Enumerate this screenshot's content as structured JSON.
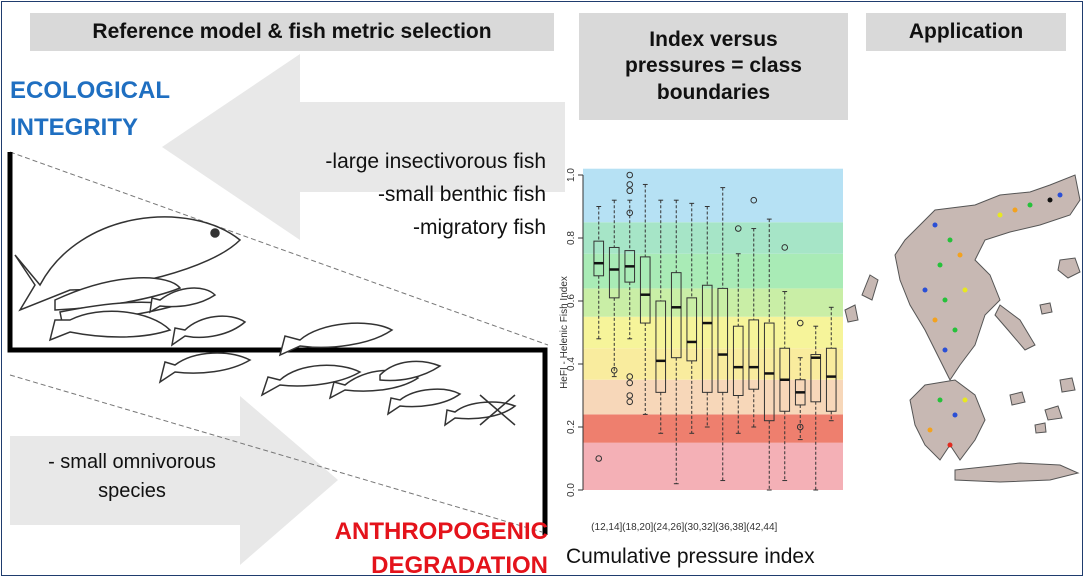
{
  "headers": {
    "h1": "Reference model & fish metric selection",
    "h2": "Index versus pressures = class boundaries",
    "h3": "Application"
  },
  "labels": {
    "ecological_integrity": [
      "ECOLOGICAL",
      "INTEGRITY"
    ],
    "anthropogenic_degradation": [
      "ANTHROPOGENIC",
      "DEGRADATION"
    ]
  },
  "metrics": [
    "-large insectivorous fish",
    "-small benthic fish",
    "-migratory fish"
  ],
  "omnivore_text": "- small omnivorous species",
  "chart_data": {
    "type": "boxplot",
    "ylabel": "HeFI - Helenic Fish Index",
    "xlabel": "Cumulative pressure index",
    "ylim": [
      0,
      1
    ],
    "yticks": [
      "0.0",
      "0.2",
      "0.4",
      "0.6",
      "0.8",
      "1.0"
    ],
    "xticks": [
      "(12,14]",
      "(18,20]",
      "(24,26]",
      "(30,32]",
      "(36,38]",
      "(42,44]"
    ],
    "class_bands": [
      {
        "from": 0.0,
        "to": 0.15,
        "color": "#f4b0b6"
      },
      {
        "from": 0.15,
        "to": 0.24,
        "color": "#ee7f6e"
      },
      {
        "from": 0.24,
        "to": 0.35,
        "color": "#f7d7b9"
      },
      {
        "from": 0.35,
        "to": 0.45,
        "color": "#f9ec9e"
      },
      {
        "from": 0.45,
        "to": 0.55,
        "color": "#f6f49a"
      },
      {
        "from": 0.55,
        "to": 0.64,
        "color": "#c9eea6"
      },
      {
        "from": 0.64,
        "to": 0.75,
        "color": "#a9ebb6"
      },
      {
        "from": 0.75,
        "to": 0.85,
        "color": "#a6e5c7"
      },
      {
        "from": 0.85,
        "to": 1.02,
        "color": "#b6e1f4"
      }
    ],
    "boxes": [
      {
        "med": 0.72,
        "q1": 0.68,
        "q3": 0.79,
        "lo": 0.48,
        "hi": 0.9,
        "out": [
          0.1
        ]
      },
      {
        "med": 0.7,
        "q1": 0.61,
        "q3": 0.77,
        "lo": 0.36,
        "hi": 0.92,
        "out": [
          0.38
        ]
      },
      {
        "med": 0.71,
        "q1": 0.66,
        "q3": 0.76,
        "lo": 0.48,
        "hi": 0.92,
        "out": [
          1.0,
          0.97,
          0.95,
          0.88,
          0.36,
          0.34,
          0.3,
          0.28
        ]
      },
      {
        "med": 0.62,
        "q1": 0.53,
        "q3": 0.74,
        "lo": 0.24,
        "hi": 0.97,
        "out": []
      },
      {
        "med": 0.41,
        "q1": 0.31,
        "q3": 0.6,
        "lo": 0.18,
        "hi": 0.92,
        "out": []
      },
      {
        "med": 0.58,
        "q1": 0.42,
        "q3": 0.69,
        "lo": 0.02,
        "hi": 0.92,
        "out": []
      },
      {
        "med": 0.47,
        "q1": 0.41,
        "q3": 0.61,
        "lo": 0.18,
        "hi": 0.91,
        "out": []
      },
      {
        "med": 0.53,
        "q1": 0.31,
        "q3": 0.65,
        "lo": 0.2,
        "hi": 0.9,
        "out": []
      },
      {
        "med": 0.43,
        "q1": 0.31,
        "q3": 0.64,
        "lo": 0.03,
        "hi": 0.96,
        "out": []
      },
      {
        "med": 0.39,
        "q1": 0.3,
        "q3": 0.52,
        "lo": 0.18,
        "hi": 0.75,
        "out": [
          0.83
        ]
      },
      {
        "med": 0.39,
        "q1": 0.32,
        "q3": 0.54,
        "lo": 0.2,
        "hi": 0.83,
        "out": [
          0.92
        ]
      },
      {
        "med": 0.37,
        "q1": 0.22,
        "q3": 0.53,
        "lo": 0.0,
        "hi": 0.86,
        "out": []
      },
      {
        "med": 0.35,
        "q1": 0.25,
        "q3": 0.45,
        "lo": 0.03,
        "hi": 0.63,
        "out": [
          0.77
        ]
      },
      {
        "med": 0.31,
        "q1": 0.27,
        "q3": 0.35,
        "lo": 0.16,
        "hi": 0.42,
        "out": [
          0.53,
          0.2
        ]
      },
      {
        "med": 0.42,
        "q1": 0.28,
        "q3": 0.43,
        "lo": 0.0,
        "hi": 0.52,
        "out": []
      },
      {
        "med": 0.36,
        "q1": 0.25,
        "q3": 0.45,
        "lo": 0.22,
        "hi": 0.58,
        "out": []
      }
    ]
  }
}
